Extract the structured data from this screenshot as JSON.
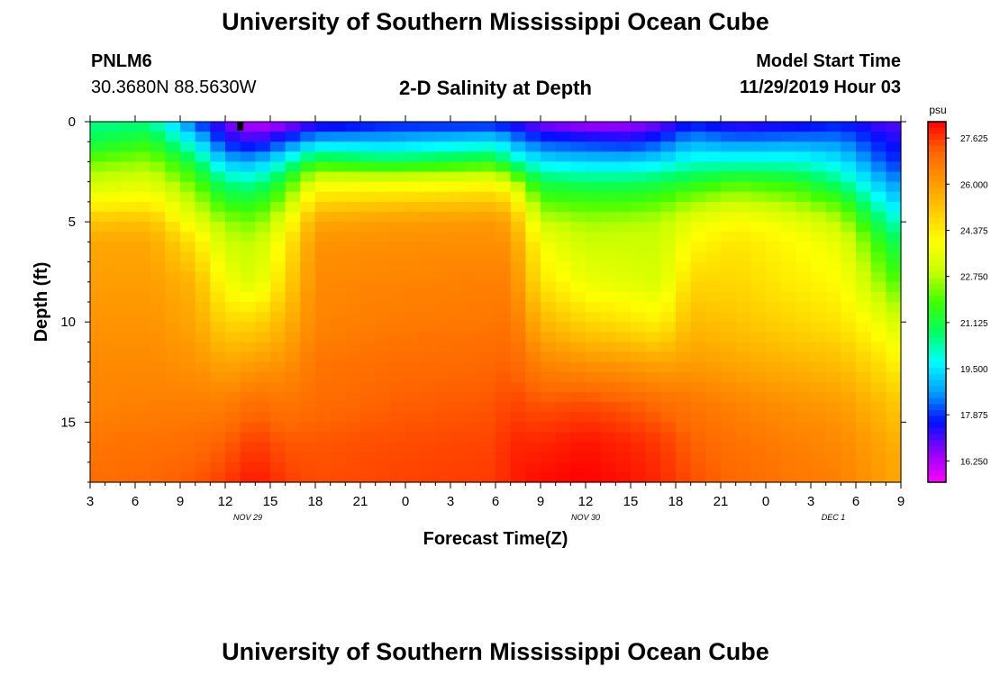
{
  "header": {
    "title": "University of Southern Mississippi Ocean Cube",
    "station": "PNLM6",
    "coords": "30.3680N 88.5630W",
    "plot_title": "2-D Salinity at Depth",
    "model_label": "Model Start Time",
    "model_time": "11/29/2019 Hour 03"
  },
  "footer": {
    "title": "University of Southern Mississippi Ocean Cube"
  },
  "chart_data": {
    "type": "heatmap",
    "title": "2-D Salinity at Depth",
    "xlabel": "Forecast Time(Z)",
    "ylabel": "Depth (ft)",
    "x_tick_labels": [
      "3",
      "6",
      "9",
      "12",
      "15",
      "18",
      "21",
      "0",
      "3",
      "6",
      "9",
      "12",
      "15",
      "18",
      "21",
      "0",
      "3",
      "6",
      "9"
    ],
    "x_date_labels": [
      {
        "label": "NOV 29",
        "tick_index": 3.5
      },
      {
        "label": "NOV 30",
        "tick_index": 11
      },
      {
        "label": "DEC 1",
        "tick_index": 16.5
      }
    ],
    "y_ticks": [
      0,
      5,
      10,
      15
    ],
    "ylim": [
      0,
      18
    ],
    "xlim_hours": [
      0,
      54
    ],
    "colorbar": {
      "unit": "psu",
      "ticks": [
        "27.625",
        "26.000",
        "24.375",
        "22.750",
        "21.125",
        "19.500",
        "17.875",
        "16.250"
      ],
      "range": [
        15.5,
        28.2
      ],
      "colors": [
        "#ff00ff",
        "#9000ff",
        "#0010ff",
        "#00a0ff",
        "#00ffff",
        "#00ff60",
        "#40ff00",
        "#c8ff00",
        "#ffff00",
        "#ffcc00",
        "#ff9900",
        "#ff6600",
        "#ff0000"
      ]
    },
    "marker": {
      "hour": 10,
      "depth": 0.3
    },
    "profile_depths_ft": [
      0,
      1,
      2,
      3,
      4,
      5,
      6,
      8,
      10,
      12,
      14,
      16,
      18
    ],
    "profiles": [
      {
        "hour": 0,
        "salinity": [
          20.5,
          21.0,
          22.2,
          23.0,
          24.0,
          25.2,
          25.8,
          26.0,
          26.2,
          26.4,
          26.5,
          26.8,
          27.0
        ]
      },
      {
        "hour": 4,
        "salinity": [
          20.5,
          21.5,
          22.5,
          23.3,
          24.2,
          25.3,
          25.8,
          26.0,
          26.2,
          26.4,
          26.6,
          26.9,
          27.1
        ]
      },
      {
        "hour": 7,
        "salinity": [
          18.0,
          19.5,
          21.0,
          22.0,
          22.8,
          23.5,
          24.5,
          25.5,
          25.8,
          26.2,
          26.6,
          27.0,
          27.3
        ]
      },
      {
        "hour": 9,
        "salinity": [
          16.8,
          17.6,
          19.0,
          20.5,
          21.5,
          22.5,
          23.0,
          23.8,
          24.8,
          25.8,
          26.6,
          27.2,
          27.6
        ]
      },
      {
        "hour": 11,
        "salinity": [
          16.0,
          17.2,
          18.8,
          20.3,
          21.4,
          22.2,
          22.8,
          23.2,
          24.8,
          26.0,
          27.0,
          27.6,
          28.0
        ]
      },
      {
        "hour": 13,
        "salinity": [
          16.3,
          18.0,
          20.0,
          21.5,
          22.5,
          23.5,
          24.2,
          24.8,
          25.5,
          26.2,
          26.8,
          27.3,
          27.6
        ]
      },
      {
        "hour": 15,
        "salinity": [
          17.0,
          19.0,
          21.5,
          23.5,
          24.8,
          25.8,
          26.2,
          26.4,
          26.5,
          26.8,
          27.0,
          27.3,
          27.4
        ]
      },
      {
        "hour": 20,
        "salinity": [
          17.5,
          19.0,
          21.0,
          23.5,
          25.0,
          26.0,
          26.3,
          26.5,
          26.7,
          27.0,
          27.2,
          27.4,
          27.5
        ]
      },
      {
        "hour": 27,
        "salinity": [
          17.5,
          19.5,
          21.5,
          23.8,
          25.2,
          26.1,
          26.3,
          26.6,
          26.8,
          27.1,
          27.3,
          27.5,
          27.6
        ]
      },
      {
        "hour": 28,
        "salinity": [
          17.2,
          18.8,
          20.5,
          23.0,
          24.8,
          25.8,
          26.2,
          26.6,
          26.9,
          27.2,
          27.5,
          27.8,
          27.9
        ]
      },
      {
        "hour": 30,
        "salinity": [
          16.6,
          18.0,
          19.5,
          21.0,
          22.0,
          23.0,
          23.8,
          24.5,
          25.5,
          26.5,
          27.3,
          27.8,
          28.1
        ]
      },
      {
        "hour": 33,
        "salinity": [
          16.2,
          17.8,
          19.2,
          20.8,
          21.8,
          22.6,
          23.0,
          23.6,
          24.8,
          26.2,
          27.4,
          28.0,
          28.2
        ]
      },
      {
        "hour": 36,
        "salinity": [
          16.3,
          17.6,
          19.2,
          20.8,
          21.8,
          22.7,
          23.0,
          23.4,
          24.5,
          26.0,
          27.2,
          27.8,
          28.0
        ]
      },
      {
        "hour": 38,
        "salinity": [
          16.7,
          18.0,
          19.5,
          21.0,
          22.0,
          22.8,
          23.0,
          23.2,
          24.2,
          25.8,
          27.0,
          27.6,
          27.8
        ]
      },
      {
        "hour": 40,
        "salinity": [
          17.5,
          18.8,
          20.0,
          21.3,
          22.5,
          23.5,
          24.0,
          24.8,
          25.4,
          26.0,
          26.8,
          27.2,
          27.4
        ]
      },
      {
        "hour": 43,
        "salinity": [
          17.0,
          18.5,
          20.0,
          21.8,
          23.0,
          24.0,
          24.5,
          24.8,
          25.2,
          25.8,
          26.5,
          26.9,
          27.1
        ]
      },
      {
        "hour": 47,
        "salinity": [
          17.2,
          18.6,
          20.0,
          21.5,
          22.5,
          23.5,
          24.0,
          24.3,
          24.8,
          25.5,
          26.2,
          26.6,
          26.8
        ]
      },
      {
        "hour": 50,
        "salinity": [
          17.6,
          18.5,
          19.5,
          20.5,
          21.8,
          22.8,
          23.5,
          24.0,
          24.5,
          25.3,
          26.0,
          26.4,
          26.6
        ]
      },
      {
        "hour": 53,
        "salinity": [
          17.0,
          17.5,
          18.0,
          18.8,
          19.6,
          20.5,
          21.3,
          22.3,
          23.5,
          24.5,
          25.3,
          25.8,
          26.0
        ]
      },
      {
        "hour": 54,
        "salinity": [
          17.0,
          17.4,
          17.8,
          18.5,
          19.2,
          20.0,
          20.8,
          21.8,
          23.0,
          24.0,
          25.0,
          25.5,
          25.8
        ]
      }
    ]
  }
}
